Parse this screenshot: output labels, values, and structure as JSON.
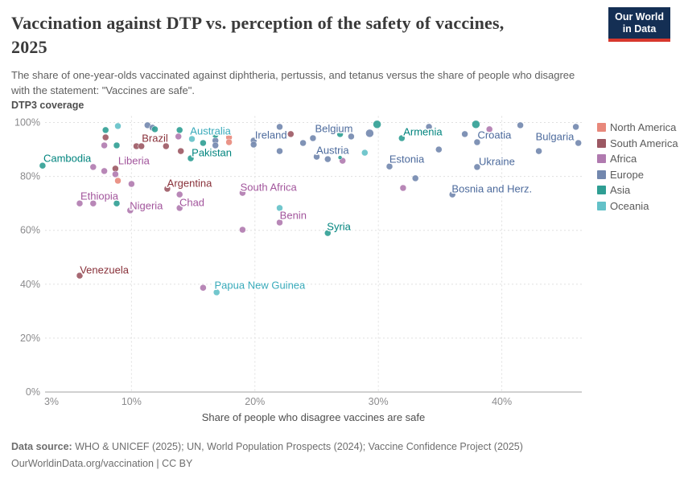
{
  "header": {
    "title_line1": "Vaccination against DTP vs. perception of the safety of vaccines,",
    "title_line2": "2025",
    "subtitle_line1": "The share of one-year-olds vaccinated against diphtheria, pertussis, and tetanus versus the share of people who disagree",
    "subtitle_line2": "with the statement: \"Vaccines are safe\".",
    "logo_line1": "Our World",
    "logo_line2": "in Data"
  },
  "chart_data": {
    "type": "scatter",
    "title": "Vaccination against DTP vs. perception of the safety of vaccines, 2025",
    "xlabel": "Share of people who disagree vaccines are safe",
    "ylabel": "DTP3 coverage",
    "xlim": [
      3,
      46.5
    ],
    "ylim": [
      0,
      100
    ],
    "grid": true,
    "legend_position": "right",
    "x_ticks": [
      {
        "value": 3,
        "label": "3%",
        "dx": 8
      },
      {
        "value": 10,
        "label": "10%",
        "dx": 0
      },
      {
        "value": 20,
        "label": "20%",
        "dx": 0
      },
      {
        "value": 30,
        "label": "30%",
        "dx": 0
      },
      {
        "value": 40,
        "label": "40%",
        "dx": 0
      }
    ],
    "y_ticks": [
      {
        "value": 0,
        "label": "0%"
      },
      {
        "value": 20,
        "label": "20%"
      },
      {
        "value": 40,
        "label": "40%"
      },
      {
        "value": 60,
        "label": "60%"
      },
      {
        "value": 80,
        "label": "80%"
      },
      {
        "value": 100,
        "label": "100%"
      }
    ],
    "series": [
      {
        "name": "North America",
        "color": "#E8887B",
        "label_color": "#D3674F",
        "points": [
          {
            "x": 8.9,
            "y": 78.4
          },
          {
            "x": 17.9,
            "y": 94.5
          },
          {
            "x": 17.9,
            "y": 92.7
          }
        ]
      },
      {
        "name": "South America",
        "color": "#9C5863",
        "label_color": "#883039",
        "points": [
          {
            "x": 7.9,
            "y": 94.5
          },
          {
            "x": 8.7,
            "y": 82.9
          },
          {
            "x": 10.4,
            "y": 91.2
          },
          {
            "x": 10.8,
            "y": 91.2
          },
          {
            "x": 12.8,
            "y": 91.2,
            "label": "Brazil",
            "lx": 11.9,
            "ly": 94.2
          },
          {
            "x": 14.0,
            "y": 89.4
          },
          {
            "x": 22.9,
            "y": 95.7
          },
          {
            "x": 12.9,
            "y": 75.4,
            "label": "Argentina",
            "lx": 14.7,
            "ly": 77.5
          },
          {
            "x": 5.8,
            "y": 43.2,
            "label": "Venezuela",
            "lx": 7.8,
            "ly": 45.3
          }
        ]
      },
      {
        "name": "Africa",
        "color": "#B07AAF",
        "label_color": "#A2559C",
        "points": [
          {
            "x": 7.8,
            "y": 91.5
          },
          {
            "x": 6.9,
            "y": 83.5
          },
          {
            "x": 7.8,
            "y": 82.0
          },
          {
            "x": 8.7,
            "y": 80.8,
            "label": "Liberia",
            "lx": 10.2,
            "ly": 85.8
          },
          {
            "x": 5.8,
            "y": 70.0
          },
          {
            "x": 6.9,
            "y": 70.0,
            "label": "Ethiopia",
            "lx": 7.4,
            "ly": 72.7
          },
          {
            "x": 10.0,
            "y": 77.2
          },
          {
            "x": 9.9,
            "y": 67.4,
            "label": "Nigeria",
            "lx": 11.2,
            "ly": 69.2
          },
          {
            "x": 13.8,
            "y": 94.8
          },
          {
            "x": 13.9,
            "y": 73.3
          },
          {
            "x": 13.9,
            "y": 68.3,
            "label": "Chad",
            "lx": 14.9,
            "ly": 70.3
          },
          {
            "x": 15.8,
            "y": 38.7
          },
          {
            "x": 19.0,
            "y": 73.9,
            "label": "South Africa",
            "lx": 21.1,
            "ly": 76.0
          },
          {
            "x": 19.0,
            "y": 60.2
          },
          {
            "x": 22.0,
            "y": 62.9,
            "label": "Benin",
            "lx": 23.1,
            "ly": 65.6
          },
          {
            "x": 27.1,
            "y": 85.8
          },
          {
            "x": 32.0,
            "y": 75.7
          },
          {
            "x": 39.0,
            "y": 97.5
          }
        ]
      },
      {
        "name": "Europe",
        "color": "#7287AE",
        "label_color": "#4C6A9C",
        "points": [
          {
            "x": 11.3,
            "y": 99.0
          },
          {
            "x": 11.7,
            "y": 98.1
          },
          {
            "x": 16.8,
            "y": 93.3
          },
          {
            "x": 16.8,
            "y": 91.5
          },
          {
            "x": 19.9,
            "y": 93.3,
            "label": "Ireland",
            "lx": 21.3,
            "ly": 95.4
          },
          {
            "x": 19.9,
            "y": 91.8
          },
          {
            "x": 22.0,
            "y": 98.4
          },
          {
            "x": 22.0,
            "y": 89.4
          },
          {
            "x": 23.9,
            "y": 92.4
          },
          {
            "x": 24.7,
            "y": 94.2
          },
          {
            "x": 25.0,
            "y": 87.3
          },
          {
            "x": 25.9,
            "y": 86.4,
            "label": "Austria",
            "lx": 26.3,
            "ly": 89.7
          },
          {
            "x": 27.8,
            "y": 94.8,
            "label": "Belgium",
            "lx": 26.4,
            "ly": 97.8
          },
          {
            "x": 29.3,
            "y": 96.0,
            "r": 5
          },
          {
            "x": 30.9,
            "y": 83.7,
            "label": "Estonia",
            "lx": 32.3,
            "ly": 86.4
          },
          {
            "x": 33.0,
            "y": 79.3
          },
          {
            "x": 34.1,
            "y": 98.4
          },
          {
            "x": 34.9,
            "y": 90.0
          },
          {
            "x": 36.0,
            "y": 73.3,
            "label": "Bosnia and Herz.",
            "lx": 39.2,
            "ly": 75.4
          },
          {
            "x": 37.0,
            "y": 95.7
          },
          {
            "x": 38.0,
            "y": 92.7,
            "label": "Croatia",
            "lx": 39.4,
            "ly": 95.4
          },
          {
            "x": 38.0,
            "y": 83.5,
            "label": "Ukraine",
            "lx": 39.6,
            "ly": 85.5
          },
          {
            "x": 41.5,
            "y": 99.0
          },
          {
            "x": 43.0,
            "y": 89.4
          },
          {
            "x": 46.0,
            "y": 98.4
          },
          {
            "x": 46.2,
            "y": 92.4,
            "label": "Bulgaria",
            "lx": 44.3,
            "ly": 94.8
          }
        ]
      },
      {
        "name": "Asia",
        "color": "#2F9E93",
        "label_color": "#00847E",
        "points": [
          {
            "x": 2.8,
            "y": 84.0,
            "label": "Cambodia",
            "lx": 4.8,
            "ly": 86.7
          },
          {
            "x": 7.9,
            "y": 97.2
          },
          {
            "x": 8.8,
            "y": 91.5
          },
          {
            "x": 8.8,
            "y": 70.0
          },
          {
            "x": 11.9,
            "y": 97.5
          },
          {
            "x": 13.9,
            "y": 97.2
          },
          {
            "x": 14.8,
            "y": 86.7,
            "label": "Pakistan",
            "lx": 16.5,
            "ly": 88.8
          },
          {
            "x": 15.8,
            "y": 92.4
          },
          {
            "x": 16.8,
            "y": 95.4
          },
          {
            "x": 25.9,
            "y": 59.0,
            "label": "Syria",
            "lx": 26.8,
            "ly": 61.4
          },
          {
            "x": 26.9,
            "y": 95.7
          },
          {
            "x": 26.9,
            "y": 87.0,
            "r": 2.5
          },
          {
            "x": 29.9,
            "y": 99.3,
            "r": 5,
            "label": "Armenia",
            "lx": 33.6,
            "ly": 96.6
          },
          {
            "x": 31.9,
            "y": 94.2
          },
          {
            "x": 37.9,
            "y": 99.3,
            "r": 5
          }
        ]
      },
      {
        "name": "Oceania",
        "color": "#63C1C8",
        "label_color": "#38AABA",
        "points": [
          {
            "x": 8.9,
            "y": 98.7
          },
          {
            "x": 14.9,
            "y": 93.9,
            "label": "Australia",
            "lx": 16.4,
            "ly": 96.9
          },
          {
            "x": 16.9,
            "y": 37.0,
            "label": "Papua New Guinea",
            "lx": 20.4,
            "ly": 39.6
          },
          {
            "x": 22.0,
            "y": 68.3
          },
          {
            "x": 28.9,
            "y": 88.8
          }
        ]
      }
    ]
  },
  "footer": {
    "source_label": "Data source:",
    "source_text": " WHO & UNICEF (2025); UN, World Population Prospects (2024); Vaccine Confidence Project (2025)",
    "link_text": "OurWorldinData.org/vaccination | CC BY"
  },
  "style": {
    "grid_color": "#e0e0e0",
    "axis_color": "#a1a1a1",
    "tick_text_color": "#8b8b8d",
    "axis_title_color": "#4e4e4e"
  }
}
